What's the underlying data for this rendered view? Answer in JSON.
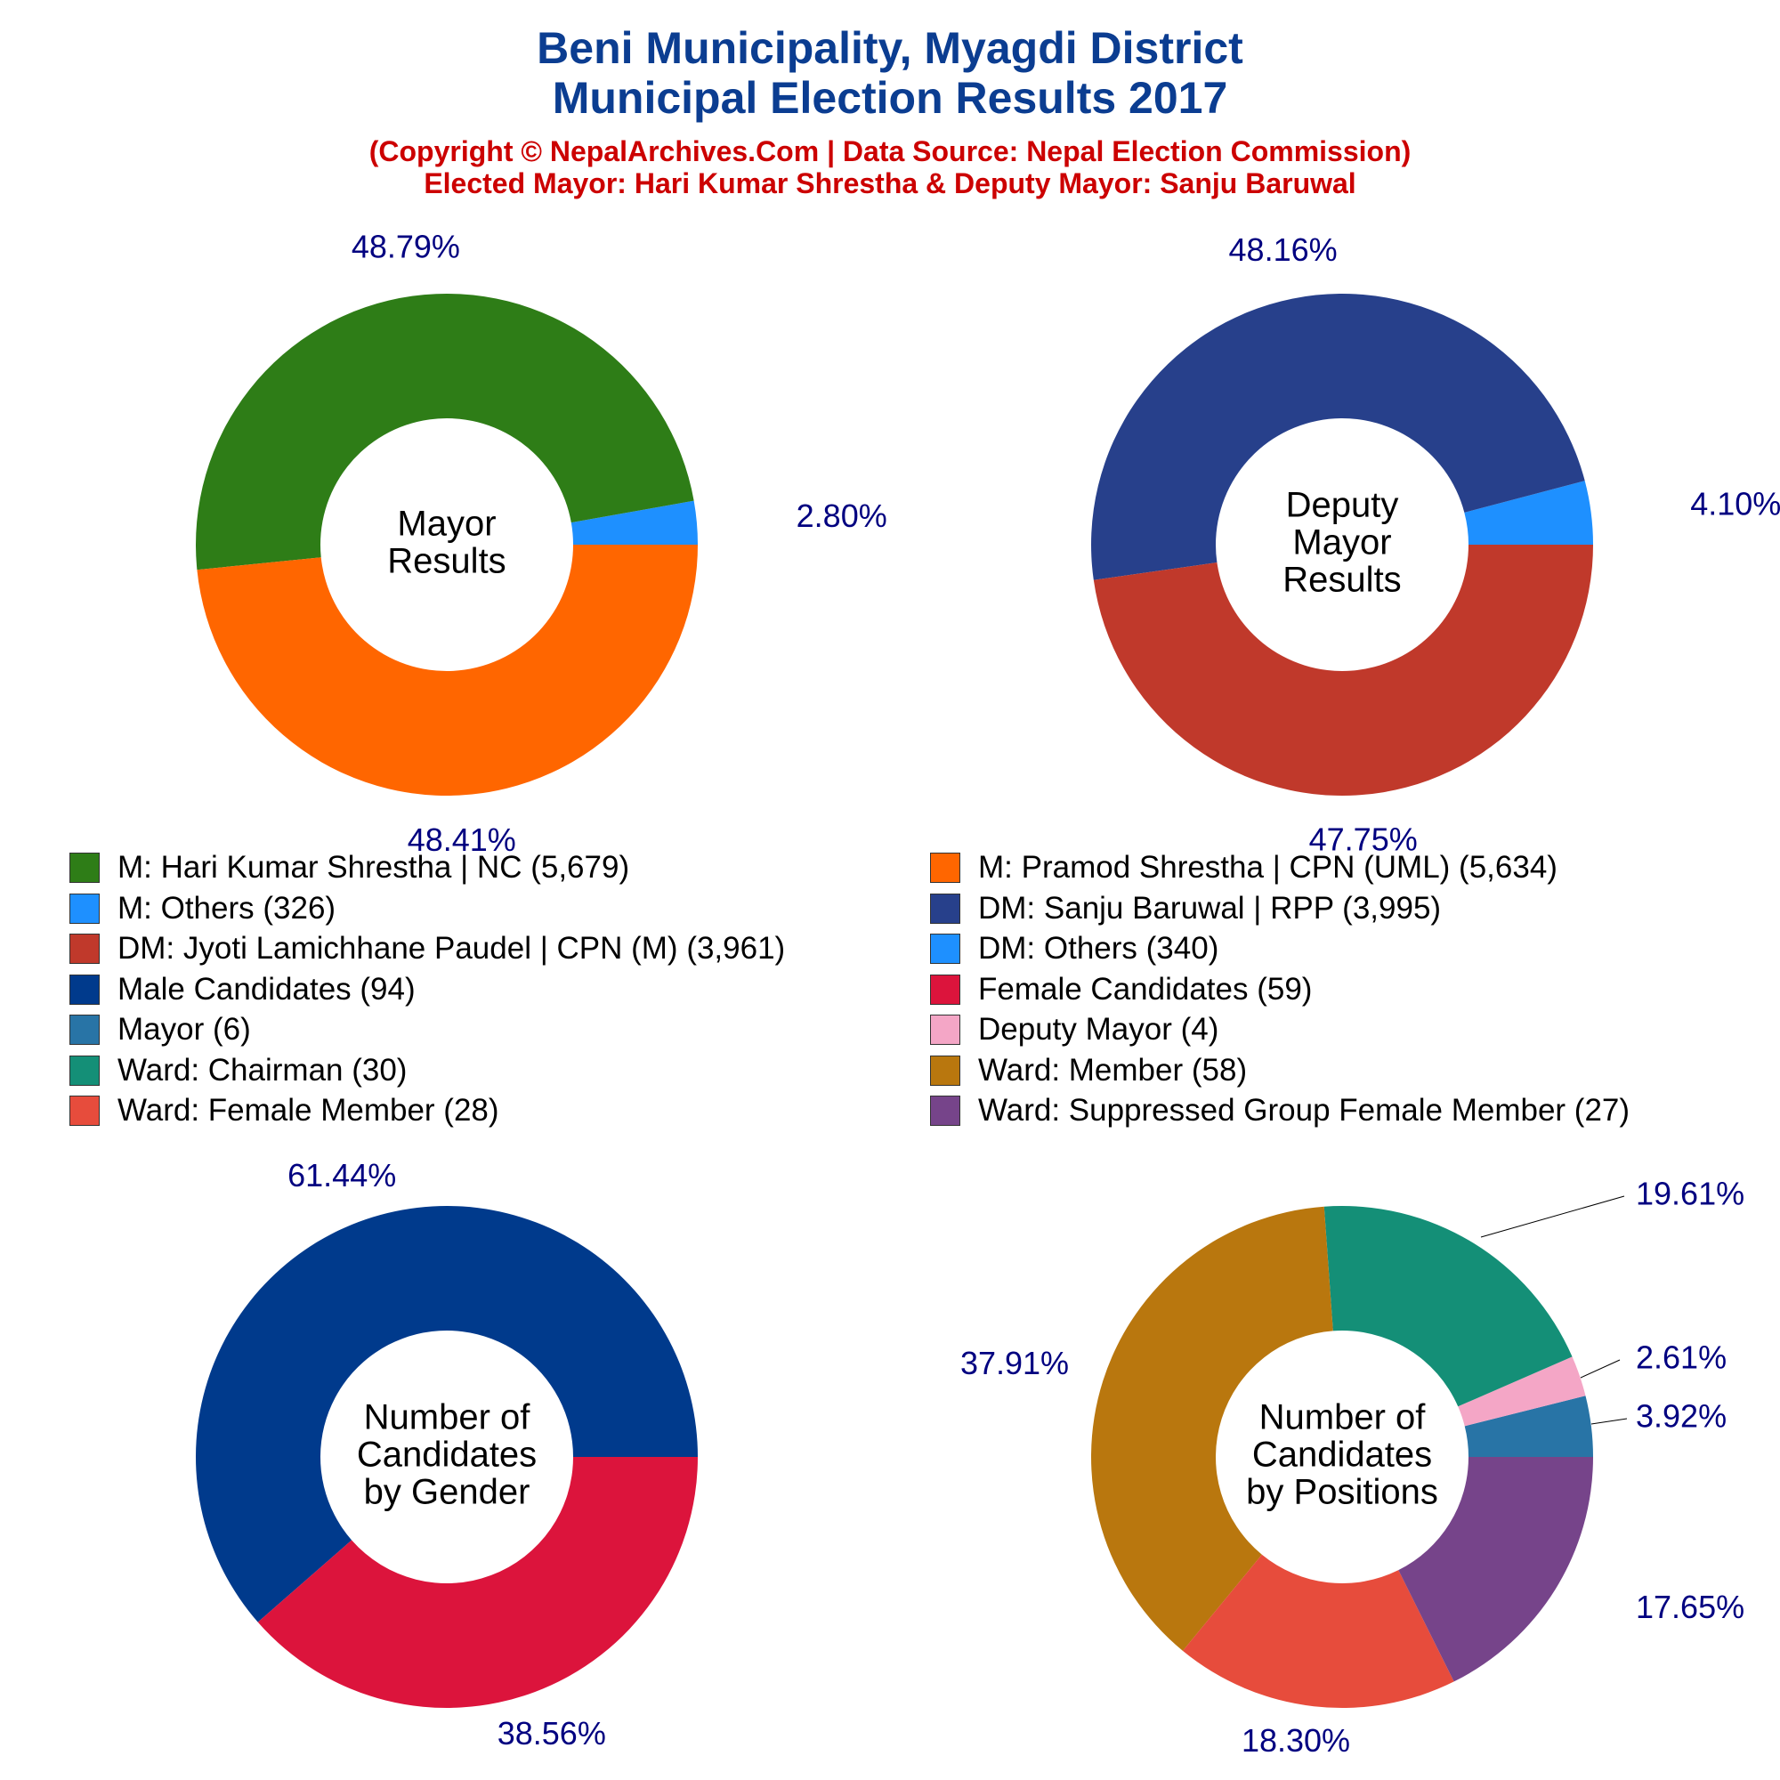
{
  "header": {
    "title_line1": "Beni Municipality, Myagdi District",
    "title_line2": "Municipal Election Results 2017",
    "subtitle_line1": "(Copyright © NepalArchives.Com | Data Source: Nepal Election Commission)",
    "subtitle_line2": "Elected Mayor: Hari Kumar Shrestha & Deputy Mayor: Sanju Baruwal"
  },
  "colors": {
    "title": "#0B3D91",
    "subtitle": "#CC0000",
    "percent_labels": "#000080"
  },
  "legend": [
    {
      "label": "M: Hari Kumar Shrestha | NC (5,679)",
      "color": "#2E7D17"
    },
    {
      "label": "M: Pramod Shrestha | CPN (UML) (5,634)",
      "color": "#FF6600"
    },
    {
      "label": "M: Others (326)",
      "color": "#1E90FF"
    },
    {
      "label": "DM: Sanju Baruwal | RPP (3,995)",
      "color": "#27408B"
    },
    {
      "label": "DM: Jyoti Lamichhane Paudel | CPN (M) (3,961)",
      "color": "#C0392B"
    },
    {
      "label": "DM: Others (340)",
      "color": "#1E90FF"
    },
    {
      "label": "Male Candidates (94)",
      "color": "#003A8C"
    },
    {
      "label": "Female Candidates (59)",
      "color": "#DC143C"
    },
    {
      "label": "Mayor (6)",
      "color": "#2874A6"
    },
    {
      "label": "Deputy Mayor (4)",
      "color": "#F4A6C6"
    },
    {
      "label": "Ward: Chairman (30)",
      "color": "#148F77"
    },
    {
      "label": "Ward: Member (58)",
      "color": "#B9770E"
    },
    {
      "label": "Ward: Female Member (28)",
      "color": "#E74C3C"
    },
    {
      "label": "Ward: Suppressed Group Female Member (27)",
      "color": "#76448A"
    }
  ],
  "chart_data": [
    {
      "type": "pie",
      "center_label": [
        "Mayor",
        "Results"
      ],
      "slices": [
        {
          "name": "M: Others",
          "value": 326,
          "percent_label": "2.80%",
          "color": "#1E90FF"
        },
        {
          "name": "M: Hari Kumar Shrestha | NC",
          "value": 5679,
          "percent_label": "48.79%",
          "color": "#2E7D17"
        },
        {
          "name": "M: Pramod Shrestha | CPN (UML)",
          "value": 5634,
          "percent_label": "48.41%",
          "color": "#FF6600"
        }
      ]
    },
    {
      "type": "pie",
      "center_label": [
        "Deputy",
        "Mayor",
        "Results"
      ],
      "slices": [
        {
          "name": "DM: Others",
          "value": 340,
          "percent_label": "4.10%",
          "color": "#1E90FF"
        },
        {
          "name": "DM: Sanju Baruwal | RPP",
          "value": 3995,
          "percent_label": "48.16%",
          "color": "#27408B"
        },
        {
          "name": "DM: Jyoti Lamichhane Paudel | CPN (M)",
          "value": 3961,
          "percent_label": "47.75%",
          "color": "#C0392B"
        }
      ]
    },
    {
      "type": "pie",
      "center_label": [
        "Number of",
        "Candidates",
        "by Gender"
      ],
      "slices": [
        {
          "name": "Male Candidates",
          "value": 94,
          "percent_label": "61.44%",
          "color": "#003A8C"
        },
        {
          "name": "Female Candidates",
          "value": 59,
          "percent_label": "38.56%",
          "color": "#DC143C"
        }
      ]
    },
    {
      "type": "pie",
      "center_label": [
        "Number of",
        "Candidates",
        "by Positions"
      ],
      "slices": [
        {
          "name": "Mayor",
          "value": 6,
          "percent_label": "3.92%",
          "color": "#2874A6"
        },
        {
          "name": "Deputy Mayor",
          "value": 4,
          "percent_label": "2.61%",
          "color": "#F4A6C6"
        },
        {
          "name": "Ward: Chairman",
          "value": 30,
          "percent_label": "19.61%",
          "color": "#148F77"
        },
        {
          "name": "Ward: Member",
          "value": 58,
          "percent_label": "37.91%",
          "color": "#B9770E"
        },
        {
          "name": "Ward: Female Member",
          "value": 28,
          "percent_label": "18.30%",
          "color": "#E74C3C"
        },
        {
          "name": "Ward: Suppressed Group Female Member",
          "value": 27,
          "percent_label": "17.65%",
          "color": "#76448A"
        }
      ]
    }
  ]
}
